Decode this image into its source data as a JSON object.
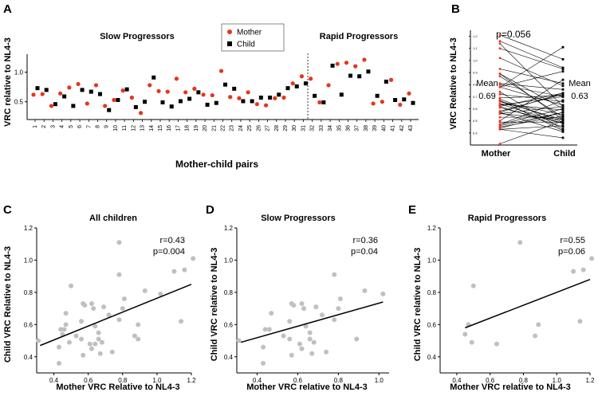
{
  "panels": {
    "A": {
      "letter": "A",
      "group_slow": "Slow Progressors",
      "group_rapid": "Rapid Progressors",
      "xlabel": "Mother-child pairs",
      "ylabel": "VRC relative to NL4-3"
    },
    "B": {
      "letter": "B",
      "ylabel": "VRC Relative to NL4-3",
      "pvalue": "p=0.056",
      "mother_label": "Mother",
      "child_label": "Child",
      "mean_word": "Mean",
      "mother_mean": "0.69",
      "child_mean": "0.63"
    },
    "C": {
      "letter": "C",
      "title": "All children",
      "xlabel": "Mother VRC Relative to NL4-3",
      "ylabel": "Child VRC Relative to NL4-3",
      "r": "r=0.43",
      "p": "p=0.004"
    },
    "D": {
      "letter": "D",
      "title": "Slow Progressors",
      "xlabel": "Mother VRC relative to NL4-3",
      "ylabel": "Child VRC relative to NL4-3",
      "r": "r=0.36",
      "p": "p=0.04"
    },
    "E": {
      "letter": "E",
      "title": "Rapid Progressors",
      "xlabel": "Mother VRC relative to NL4-3",
      "ylabel": "Child VRC relative to NL4-3",
      "r": "r=0.55",
      "p": "p=0.06"
    }
  },
  "legend": {
    "mother": "Mother",
    "child": "Child"
  },
  "colors": {
    "mother": "#e8341c",
    "child": "#000000",
    "scatter": "#c0c0c0",
    "pairline": "#000000"
  },
  "chart_data": [
    {
      "id": "A",
      "type": "scatter",
      "title": "",
      "xlabel": "Mother-child pairs",
      "ylabel": "VRC relative to NL4-3",
      "ylim": [
        0.2,
        1.25
      ],
      "yticks": [
        "0.5",
        "1.0"
      ],
      "categories": [
        "1",
        "2",
        "3",
        "4",
        "5",
        "6",
        "7",
        "8",
        "9",
        "10",
        "11",
        "12",
        "13",
        "14",
        "15",
        "16",
        "17",
        "18",
        "19",
        "20",
        "21",
        "22",
        "23",
        "24",
        "25",
        "26",
        "27",
        "28",
        "29",
        "30",
        "31",
        "32",
        "33",
        "34",
        "35",
        "36",
        "37",
        "38",
        "39",
        "40",
        "41",
        "42",
        "43"
      ],
      "divider_after": "31",
      "series": [
        {
          "name": "Mother",
          "values": [
            0.62,
            0.63,
            0.43,
            0.64,
            0.74,
            0.8,
            0.47,
            0.78,
            0.43,
            0.53,
            0.69,
            0.57,
            0.31,
            0.78,
            0.68,
            0.67,
            0.89,
            0.66,
            0.72,
            0.62,
            0.61,
            1.02,
            0.58,
            0.56,
            0.66,
            0.46,
            0.44,
            0.56,
            0.57,
            0.81,
            0.93,
            0.89,
            0.49,
            0.78,
            1.14,
            1.16,
            1.1,
            1.21,
            0.47,
            0.5,
            0.87,
            0.45,
            0.64
          ]
        },
        {
          "name": "Child",
          "values": [
            0.73,
            0.7,
            0.46,
            0.59,
            0.43,
            0.7,
            0.67,
            0.63,
            0.36,
            0.53,
            0.71,
            0.41,
            0.5,
            0.91,
            0.49,
            0.42,
            0.51,
            0.55,
            0.66,
            0.45,
            0.48,
            0.79,
            0.72,
            0.51,
            0.51,
            0.57,
            0.57,
            0.62,
            0.73,
            0.76,
            0.81,
            0.6,
            0.49,
            1.11,
            0.62,
            0.94,
            0.93,
            1.01,
            0.6,
            0.84,
            0.53,
            0.54,
            0.48
          ]
        }
      ]
    },
    {
      "id": "B",
      "type": "line",
      "xlabel": "",
      "ylabel": "VRC Relative to NL4-3",
      "categories": [
        "Mother",
        "Child"
      ],
      "ylim": [
        0.3,
        1.25
      ],
      "yticks": [
        "0.4",
        "0.5",
        "0.6",
        "0.7",
        "0.8",
        "0.9",
        "1.0",
        "1.1",
        "1.2"
      ],
      "pvalue": "p=0.056",
      "means": {
        "Mother": 0.69,
        "Child": 0.63
      },
      "pairs": [
        [
          0.62,
          0.73
        ],
        [
          0.63,
          0.7
        ],
        [
          0.43,
          0.46
        ],
        [
          0.64,
          0.59
        ],
        [
          0.74,
          0.43
        ],
        [
          0.8,
          0.7
        ],
        [
          0.47,
          0.67
        ],
        [
          0.78,
          0.63
        ],
        [
          0.43,
          0.36
        ],
        [
          0.53,
          0.53
        ],
        [
          0.69,
          0.71
        ],
        [
          0.57,
          0.41
        ],
        [
          0.31,
          0.5
        ],
        [
          0.78,
          0.91
        ],
        [
          0.68,
          0.49
        ],
        [
          0.67,
          0.42
        ],
        [
          0.89,
          0.51
        ],
        [
          0.66,
          0.55
        ],
        [
          0.72,
          0.66
        ],
        [
          0.62,
          0.45
        ],
        [
          0.61,
          0.48
        ],
        [
          1.02,
          0.79
        ],
        [
          0.58,
          0.72
        ],
        [
          0.56,
          0.51
        ],
        [
          0.66,
          0.51
        ],
        [
          0.46,
          0.57
        ],
        [
          0.44,
          0.57
        ],
        [
          0.56,
          0.62
        ],
        [
          0.57,
          0.73
        ],
        [
          0.81,
          0.76
        ],
        [
          0.93,
          0.81
        ],
        [
          0.89,
          0.6
        ],
        [
          0.49,
          0.49
        ],
        [
          0.78,
          1.11
        ],
        [
          1.14,
          0.62
        ],
        [
          1.16,
          0.94
        ],
        [
          1.1,
          0.93
        ],
        [
          1.21,
          1.01
        ],
        [
          0.47,
          0.6
        ],
        [
          0.5,
          0.84
        ],
        [
          0.87,
          0.53
        ],
        [
          0.45,
          0.54
        ],
        [
          0.64,
          0.48
        ]
      ]
    },
    {
      "id": "C",
      "type": "scatter",
      "title": "All children",
      "xlabel": "Mother VRC Relative to NL4-3",
      "ylabel": "Child VRC Relative to NL4-3",
      "xlim": [
        0.3,
        1.2
      ],
      "ylim": [
        0.3,
        1.2
      ],
      "xticks": [
        "0.4",
        "0.6",
        "0.8",
        "1.0",
        "1.2"
      ],
      "yticks": [
        "0.4",
        "0.6",
        "0.8",
        "1.0",
        "1.2"
      ],
      "r": "r=0.43",
      "p": "p=0.004",
      "fit": [
        [
          0.32,
          0.47
        ],
        [
          1.2,
          0.85
        ]
      ],
      "x": [
        0.62,
        0.63,
        0.43,
        0.64,
        0.74,
        0.8,
        0.47,
        0.78,
        0.43,
        0.53,
        0.69,
        0.57,
        0.31,
        0.78,
        0.68,
        0.67,
        0.89,
        0.66,
        0.72,
        0.62,
        0.61,
        1.02,
        0.58,
        0.56,
        0.66,
        0.46,
        0.44,
        0.56,
        0.57,
        0.81,
        0.93,
        0.89,
        0.49,
        0.78,
        1.14,
        1.16,
        1.1,
        1.21,
        0.47,
        0.5,
        0.87,
        0.45,
        0.64
      ],
      "y": [
        0.73,
        0.7,
        0.46,
        0.59,
        0.43,
        0.7,
        0.67,
        0.63,
        0.36,
        0.53,
        0.71,
        0.41,
        0.5,
        0.91,
        0.49,
        0.42,
        0.51,
        0.55,
        0.66,
        0.45,
        0.48,
        0.79,
        0.72,
        0.51,
        0.51,
        0.57,
        0.57,
        0.62,
        0.73,
        0.76,
        0.81,
        0.6,
        0.49,
        1.11,
        0.62,
        0.94,
        0.93,
        1.01,
        0.6,
        0.84,
        0.53,
        0.54,
        0.48
      ]
    },
    {
      "id": "D",
      "type": "scatter",
      "title": "Slow Progressors",
      "xlabel": "Mother VRC relative to NL4-3",
      "ylabel": "Child VRC relative to NL4-3",
      "xlim": [
        0.3,
        1.05
      ],
      "ylim": [
        0.3,
        1.2
      ],
      "xticks": [
        "0.4",
        "0.6",
        "0.8",
        "1.0"
      ],
      "yticks": [
        "0.4",
        "0.6",
        "0.8",
        "1.0",
        "1.2"
      ],
      "r": "r=0.36",
      "p": "p=0.04",
      "fit": [
        [
          0.32,
          0.49
        ],
        [
          1.02,
          0.74
        ]
      ],
      "x": [
        0.62,
        0.63,
        0.43,
        0.64,
        0.74,
        0.8,
        0.47,
        0.78,
        0.43,
        0.53,
        0.69,
        0.57,
        0.31,
        0.78,
        0.68,
        0.67,
        0.89,
        0.66,
        0.72,
        0.62,
        0.61,
        1.02,
        0.58,
        0.56,
        0.66,
        0.46,
        0.44,
        0.56,
        0.57,
        0.81,
        0.93
      ],
      "y": [
        0.73,
        0.7,
        0.46,
        0.59,
        0.43,
        0.7,
        0.67,
        0.63,
        0.36,
        0.53,
        0.71,
        0.41,
        0.5,
        0.91,
        0.49,
        0.42,
        0.51,
        0.55,
        0.66,
        0.45,
        0.48,
        0.79,
        0.72,
        0.51,
        0.51,
        0.57,
        0.57,
        0.62,
        0.73,
        0.76,
        0.81
      ]
    },
    {
      "id": "E",
      "type": "scatter",
      "title": "Rapid Progressors",
      "xlabel": "Mother VRC relative to NL4-3",
      "ylabel": "Child VRC relative to NL4-3",
      "xlim": [
        0.3,
        1.2
      ],
      "ylim": [
        0.3,
        1.2
      ],
      "xticks": [
        "0.4",
        "0.6",
        "0.8",
        "1.0",
        "1.2"
      ],
      "yticks": [
        "0.4",
        "0.6",
        "0.8",
        "1.0",
        "1.2"
      ],
      "r": "r=0.55",
      "p": "p=0.06",
      "fit": [
        [
          0.45,
          0.58
        ],
        [
          1.2,
          0.88
        ]
      ],
      "x": [
        0.89,
        0.49,
        0.78,
        1.14,
        1.16,
        1.1,
        1.21,
        0.47,
        0.5,
        0.87,
        0.45,
        0.64
      ],
      "y": [
        0.6,
        0.49,
        1.11,
        0.62,
        0.94,
        0.93,
        1.01,
        0.6,
        0.84,
        0.53,
        0.54,
        0.48
      ]
    }
  ]
}
